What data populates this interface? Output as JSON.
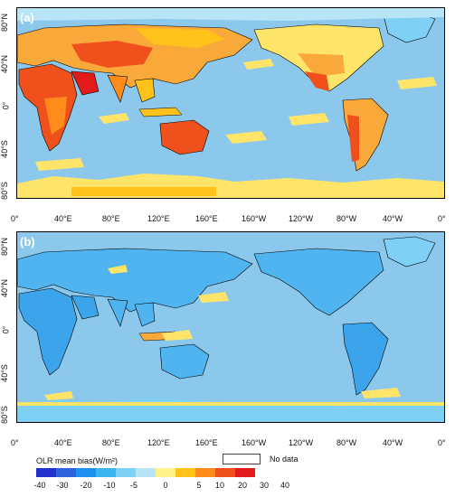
{
  "panels": [
    {
      "letter": "(a)"
    },
    {
      "letter": "(b)"
    }
  ],
  "axes": {
    "lat_ticks": [
      "80°N",
      "40°N",
      "0°",
      "40°S",
      "80°S"
    ],
    "lon_ticks": [
      "0°",
      "40°E",
      "80°E",
      "120°E",
      "160°E",
      "160°W",
      "120°W",
      "80°W",
      "40°W",
      "0°"
    ]
  },
  "legend": {
    "title": "OLR mean bias(W/m²)",
    "no_data_label": "No data",
    "tick_labels": [
      "-40",
      "-30",
      "-20",
      "-10",
      "-5",
      "0",
      "5",
      "10",
      "20",
      "30",
      "40"
    ],
    "colors": [
      "#2233cc",
      "#2f62dd",
      "#1e90f0",
      "#3cb4f0",
      "#7fd0f5",
      "#b7e4f7",
      "#fff28a",
      "#ffc21a",
      "#ff8c1a",
      "#f0501c",
      "#e21a1a"
    ]
  }
}
